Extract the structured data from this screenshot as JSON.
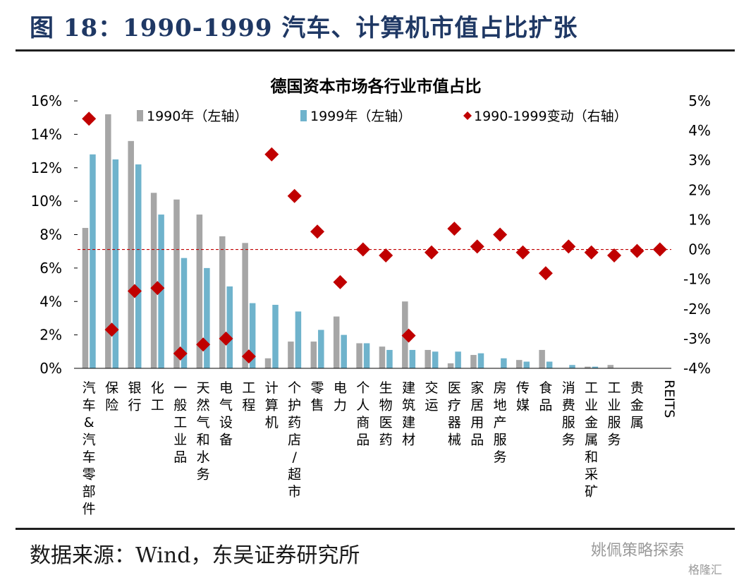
{
  "figure_title": "图 18：1990-1999 汽车、计算机市值占比扩张",
  "source": "数据来源：Wind，东吴证券研究所",
  "watermark": "姚佩策略探索",
  "watermark2": "格隆汇",
  "colors": {
    "s1990": "#a6a6a6",
    "s1999": "#6fb3cc",
    "change": "#c00000",
    "zero_line": "#c00000"
  },
  "chart_data": {
    "type": "bar",
    "title": "德国资本市场各行业市值占比",
    "categories": [
      "汽车&汽车零部件",
      "保险",
      "银行",
      "化工",
      "一般工业品",
      "天然气和水务",
      "电气设备",
      "工程",
      "计算机",
      "个护药店/超市",
      "零售",
      "电力",
      "个人商品",
      "生物医药",
      "建筑建材",
      "交运",
      "医疗器械",
      "家居用品",
      "房地产服务",
      "传媒",
      "食品",
      "消费服务",
      "工业金属和采矿",
      "工业服务",
      "贵金属",
      "REITS"
    ],
    "series": [
      {
        "name": "1990年（左轴）",
        "type": "bar",
        "axis": "left",
        "values": [
          8.4,
          15.2,
          13.6,
          10.5,
          10.1,
          9.2,
          7.9,
          7.5,
          0.6,
          1.6,
          1.6,
          3.1,
          1.5,
          1.3,
          4.0,
          1.1,
          0.3,
          0.8,
          0.0,
          0.5,
          1.1,
          0.0,
          0.1,
          0.2,
          0.0,
          0.0
        ]
      },
      {
        "name": "1999年（左轴）",
        "type": "bar",
        "axis": "left",
        "values": [
          12.8,
          12.5,
          12.2,
          9.2,
          6.6,
          6.0,
          4.9,
          3.9,
          3.8,
          3.4,
          2.3,
          2.0,
          1.5,
          1.1,
          1.1,
          1.0,
          1.0,
          0.9,
          0.6,
          0.4,
          0.4,
          0.2,
          0.1,
          0.0,
          0.0,
          0.0
        ]
      },
      {
        "name": "1990-1999变动（右轴）",
        "type": "scatter",
        "axis": "right",
        "values": [
          4.4,
          -2.7,
          -1.4,
          -1.3,
          -3.5,
          -3.2,
          -3.0,
          -3.6,
          3.2,
          1.8,
          0.6,
          -1.1,
          0.0,
          -0.2,
          -2.9,
          -0.1,
          0.7,
          0.1,
          0.5,
          -0.1,
          -0.8,
          0.1,
          -0.1,
          -0.2,
          -0.05,
          0.0
        ]
      }
    ],
    "y_left": {
      "min": 0,
      "max": 16,
      "step": 2,
      "format": "percent"
    },
    "y_right": {
      "min": -4,
      "max": 5,
      "step": 1,
      "format": "percent"
    },
    "legend_position": "top",
    "grid": false
  }
}
